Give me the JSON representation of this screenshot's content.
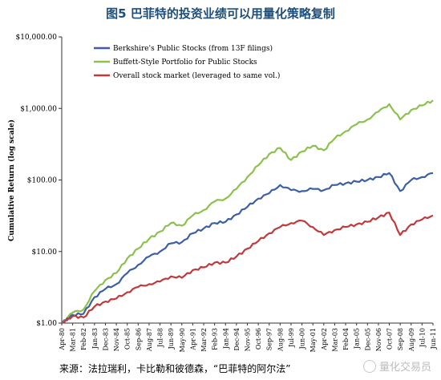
{
  "figure": {
    "title": "图5  巴菲特的投资业绩可以用量化策略复制",
    "source": "来源：法拉瑞利，卡比勒和彼德森，“巴菲特的阿尔法”",
    "watermark": "量化交易员"
  },
  "chart_data": {
    "type": "line",
    "title": "",
    "xlabel": "",
    "ylabel": "Cumulative Return (log scale)",
    "y_scale": "log",
    "ylim": [
      1,
      10000
    ],
    "y_ticks": [
      "$1.00",
      "$10.00",
      "$100.00",
      "$1,000.00",
      "$10,000.00"
    ],
    "y_tick_values": [
      1,
      10,
      100,
      1000,
      10000
    ],
    "grid": false,
    "legend_position": "top-left",
    "x": [
      "Apr-80",
      "Mar-81",
      "Feb-82",
      "Jan-83",
      "Dec-83",
      "Nov-84",
      "Oct-85",
      "Sep-86",
      "Aug-87",
      "Jul-88",
      "Jun-89",
      "May-90",
      "Apr-91",
      "Mar-92",
      "Feb-93",
      "Jan-94",
      "Dec-94",
      "Nov-95",
      "Oct-96",
      "Sep-97",
      "Aug-98",
      "Jul-99",
      "Jun-00",
      "May-01",
      "Apr-02",
      "Mar-03",
      "Feb-04",
      "Jan-05",
      "Dec-05",
      "Nov-06",
      "Oct-07",
      "Sep-08",
      "Aug-09",
      "Jul-10",
      "Jun-11"
    ],
    "series": [
      {
        "name": "Berkshire's Public Stocks (from 13F filings)",
        "color": "#3c5fa6",
        "values": [
          1.0,
          1.3,
          1.35,
          2.3,
          3.0,
          3.5,
          5.0,
          6.5,
          8.5,
          10,
          13,
          13.5,
          18,
          21,
          25,
          26,
          33,
          42,
          55,
          65,
          85,
          72,
          70,
          75,
          72,
          85,
          90,
          95,
          100,
          110,
          125,
          70,
          100,
          110,
          125
        ]
      },
      {
        "name": "Buffett-Style Portfolio for Public Stocks",
        "color": "#8cc150",
        "values": [
          1.0,
          1.4,
          1.55,
          2.8,
          4.0,
          5.0,
          8.0,
          11,
          15,
          19,
          25,
          23,
          32,
          38,
          50,
          55,
          75,
          110,
          160,
          230,
          280,
          190,
          250,
          300,
          260,
          380,
          480,
          600,
          700,
          900,
          1150,
          700,
          950,
          1100,
          1300
        ]
      },
      {
        "name": "Overall stock market (leveraged to same vol.)",
        "color": "#c0393b",
        "values": [
          1.0,
          1.25,
          1.2,
          1.7,
          2.0,
          2.2,
          2.7,
          3.2,
          3.5,
          3.8,
          4.5,
          4.3,
          5.5,
          6.0,
          7.0,
          7.0,
          8.5,
          11,
          14,
          18,
          22,
          25,
          27,
          22,
          17,
          20,
          22,
          24,
          26,
          30,
          35,
          17,
          24,
          28,
          32
        ]
      }
    ]
  }
}
